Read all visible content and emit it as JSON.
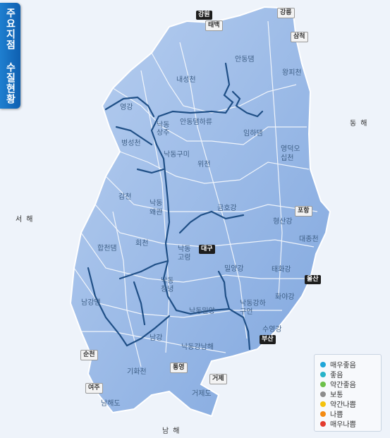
{
  "title": "주요지점 수질현황",
  "seas": {
    "west": "서해",
    "east": "동해",
    "south": "남해"
  },
  "cities": [
    {
      "name": "강원",
      "style": "dark"
    },
    {
      "name": "강릉",
      "style": "light"
    },
    {
      "name": "태백",
      "style": "light"
    },
    {
      "name": "삼척",
      "style": "light"
    },
    {
      "name": "포항",
      "style": "light"
    },
    {
      "name": "대구",
      "style": "dark"
    },
    {
      "name": "울산",
      "style": "dark"
    },
    {
      "name": "부산",
      "style": "dark"
    },
    {
      "name": "순천",
      "style": "light"
    },
    {
      "name": "여주",
      "style": "light"
    },
    {
      "name": "통영",
      "style": "light"
    },
    {
      "name": "거제",
      "style": "light"
    }
  ],
  "basins": [
    "안동댐",
    "내성천",
    "왕피천",
    "영강",
    "안동댐하류",
    "임하댐",
    "병성천",
    "낙동상주",
    "낙동구미",
    "위천",
    "영덕오십천",
    "감천",
    "낙동왜관",
    "금호강",
    "형산강",
    "대종천",
    "합천댐",
    "회천",
    "낙동고령",
    "밀양강",
    "태화강",
    "남강댐",
    "낙동창녕",
    "낙동밀양",
    "화야강",
    "낙동강하구언",
    "수영강",
    "남강",
    "낙동강남해",
    "기화천",
    "거제도",
    "남해도"
  ],
  "legend": [
    {
      "label": "매우좋음",
      "color": "#1fa6d8"
    },
    {
      "label": "좋음",
      "color": "#27b3c9"
    },
    {
      "label": "약간좋음",
      "color": "#6cc04a"
    },
    {
      "label": "보통",
      "color": "#8c8c8c"
    },
    {
      "label": "약간나쁨",
      "color": "#f4c20d"
    },
    {
      "label": "나쁨",
      "color": "#f38b12"
    },
    {
      "label": "매우나쁨",
      "color": "#e23b2e"
    }
  ]
}
